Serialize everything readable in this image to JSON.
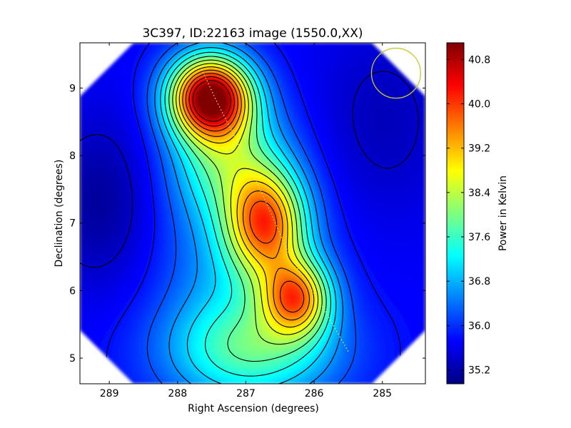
{
  "chart_data": {
    "type": "heatmap",
    "title": "3C397, ID:22163 image (1550.0,XX)",
    "xlabel": "Right Ascension (degrees)",
    "ylabel": "Declination (degrees)",
    "xlim": [
      289.43,
      284.37
    ],
    "ylim": [
      4.62,
      9.67
    ],
    "x_ticks": [
      289,
      288,
      287,
      286,
      285
    ],
    "y_ticks": [
      5,
      6,
      7,
      8,
      9
    ],
    "x_tick_labels": [
      "289",
      "288",
      "287",
      "286",
      "285"
    ],
    "y_tick_labels": [
      "5",
      "6",
      "7",
      "8",
      "9"
    ],
    "colormap": "jet",
    "colorbar": {
      "label": "Power in Kelvin",
      "range": [
        34.95,
        41.1
      ],
      "ticks": [
        35.2,
        36.0,
        36.8,
        37.6,
        38.4,
        39.2,
        40.0,
        40.8
      ],
      "tick_labels": [
        "35.2",
        "36.0",
        "36.8",
        "37.6",
        "38.4",
        "39.2",
        "40.0",
        "40.8"
      ]
    },
    "map_model": {
      "base": 35.7,
      "peaks": [
        {
          "ra": 287.52,
          "dec": 8.88,
          "amplitude": 5.3,
          "sigma_ra": 0.42,
          "sigma_dec": 0.42
        },
        {
          "ra": 286.7,
          "dec": 7.0,
          "amplitude": 3.4,
          "sigma_ra": 0.4,
          "sigma_dec": 0.55
        },
        {
          "ra": 286.25,
          "dec": 5.9,
          "amplitude": 3.2,
          "sigma_ra": 0.35,
          "sigma_dec": 0.4
        },
        {
          "ra": 286.9,
          "dec": 5.1,
          "amplitude": 1.7,
          "sigma_ra": 0.9,
          "sigma_dec": 0.55
        },
        {
          "ra": 287.3,
          "dec": 8.0,
          "amplitude": 1.7,
          "sigma_ra": 0.55,
          "sigma_dec": 0.6
        },
        {
          "ra": 287.1,
          "dec": 6.5,
          "amplitude": 1.0,
          "sigma_ra": 0.8,
          "sigma_dec": 1.2
        }
      ],
      "dips": [
        {
          "ra": 289.1,
          "dec": 7.3,
          "amplitude": 0.6,
          "sigma_ra": 0.6,
          "sigma_dec": 0.9
        },
        {
          "ra": 285.0,
          "dec": 8.5,
          "amplitude": 0.4,
          "sigma_ra": 0.7,
          "sigma_dec": 1.0
        }
      ],
      "contour_levels": [
        35.4,
        35.8,
        36.2,
        36.6,
        37.0,
        37.4,
        37.8,
        38.2,
        38.6,
        39.0,
        39.4,
        39.8,
        40.2,
        40.6
      ]
    },
    "beam_circle": {
      "ra": 284.8,
      "dec": 9.22,
      "radius_ra": 0.36,
      "radius_dec": 0.37,
      "color": "#c8c830"
    },
    "source_markers": {
      "color": "#f2ee5a",
      "points": [
        [
          287.75,
          9.5
        ],
        [
          287.45,
          8.85
        ],
        [
          287.05,
          8.05
        ],
        [
          286.7,
          7.3
        ],
        [
          286.35,
          6.5
        ],
        [
          285.9,
          5.8
        ],
        [
          285.5,
          5.1
        ]
      ]
    }
  }
}
